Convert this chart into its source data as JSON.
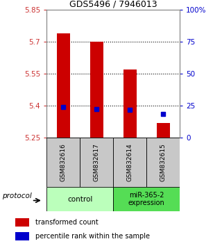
{
  "title": "GDS5496 / 7946013",
  "samples": [
    "GSM832616",
    "GSM832617",
    "GSM832614",
    "GSM832615"
  ],
  "red_values": [
    5.74,
    5.7,
    5.57,
    5.32
  ],
  "blue_values": [
    5.395,
    5.385,
    5.382,
    5.362
  ],
  "ylim": [
    5.25,
    5.85
  ],
  "yticks_left": [
    5.25,
    5.4,
    5.55,
    5.7,
    5.85
  ],
  "yticks_right": [
    0,
    25,
    50,
    75,
    100
  ],
  "ytick_right_labels": [
    "0",
    "25",
    "50",
    "75",
    "100%"
  ],
  "bar_bottom": 5.25,
  "bar_width": 0.4,
  "red_color": "#cc0000",
  "blue_color": "#0000cc",
  "left_tick_color": "#cc3333",
  "right_tick_color": "#0000cc",
  "grid_color": "#555555",
  "sample_bg": "#c8c8c8",
  "ctrl_color": "#bbffbb",
  "mir_color": "#55dd55",
  "legend_red_label": "transformed count",
  "legend_blue_label": "percentile rank within the sample",
  "protocol_label": "protocol",
  "control_label": "control",
  "mir_label": "miR-365-2\nexpression"
}
